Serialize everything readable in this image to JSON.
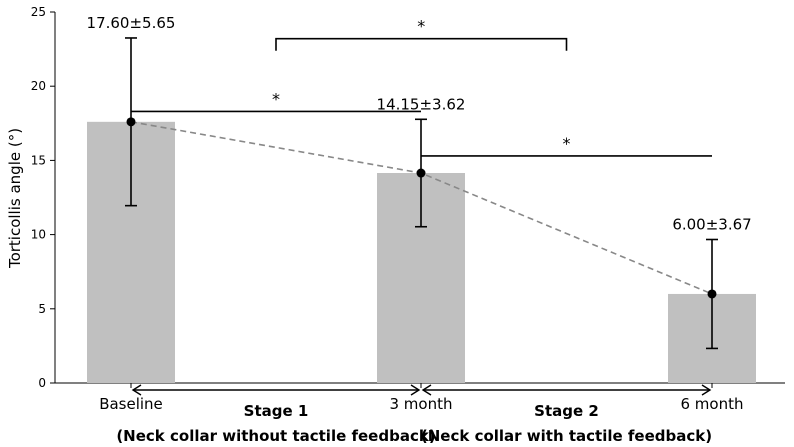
{
  "chart_data": {
    "type": "bar",
    "categories": [
      "Baseline",
      "3 month",
      "6 month"
    ],
    "values": [
      17.6,
      14.15,
      6.0
    ],
    "errors": [
      5.65,
      3.62,
      3.67
    ],
    "value_labels": [
      "17.60±5.65",
      "14.15±3.62",
      "6.00±3.67"
    ],
    "ylabel": "Torticollis angle (°)",
    "ylim": [
      0,
      25
    ],
    "yticks": [
      0,
      5,
      10,
      15,
      20,
      25
    ],
    "grid": false,
    "trend_line": "dashed",
    "colors": {
      "bar": "#c0c0c0",
      "point": "#000000",
      "trend": "#888888"
    },
    "stages": [
      {
        "label": "Stage 1",
        "description": "(Neck collar without tactile feedback)",
        "from": 0,
        "to": 1
      },
      {
        "label": "Stage 2",
        "description": "(Neck collar with tactile feedback)",
        "from": 1,
        "to": 2
      }
    ],
    "significance": [
      {
        "from": 0,
        "to": 1,
        "level": 18.3,
        "label": "*"
      },
      {
        "from": 1,
        "to": 2,
        "level": 15.3,
        "label": "*"
      },
      {
        "from": 0.5,
        "to": 1.5,
        "level": 23.2,
        "label": "*"
      }
    ]
  }
}
